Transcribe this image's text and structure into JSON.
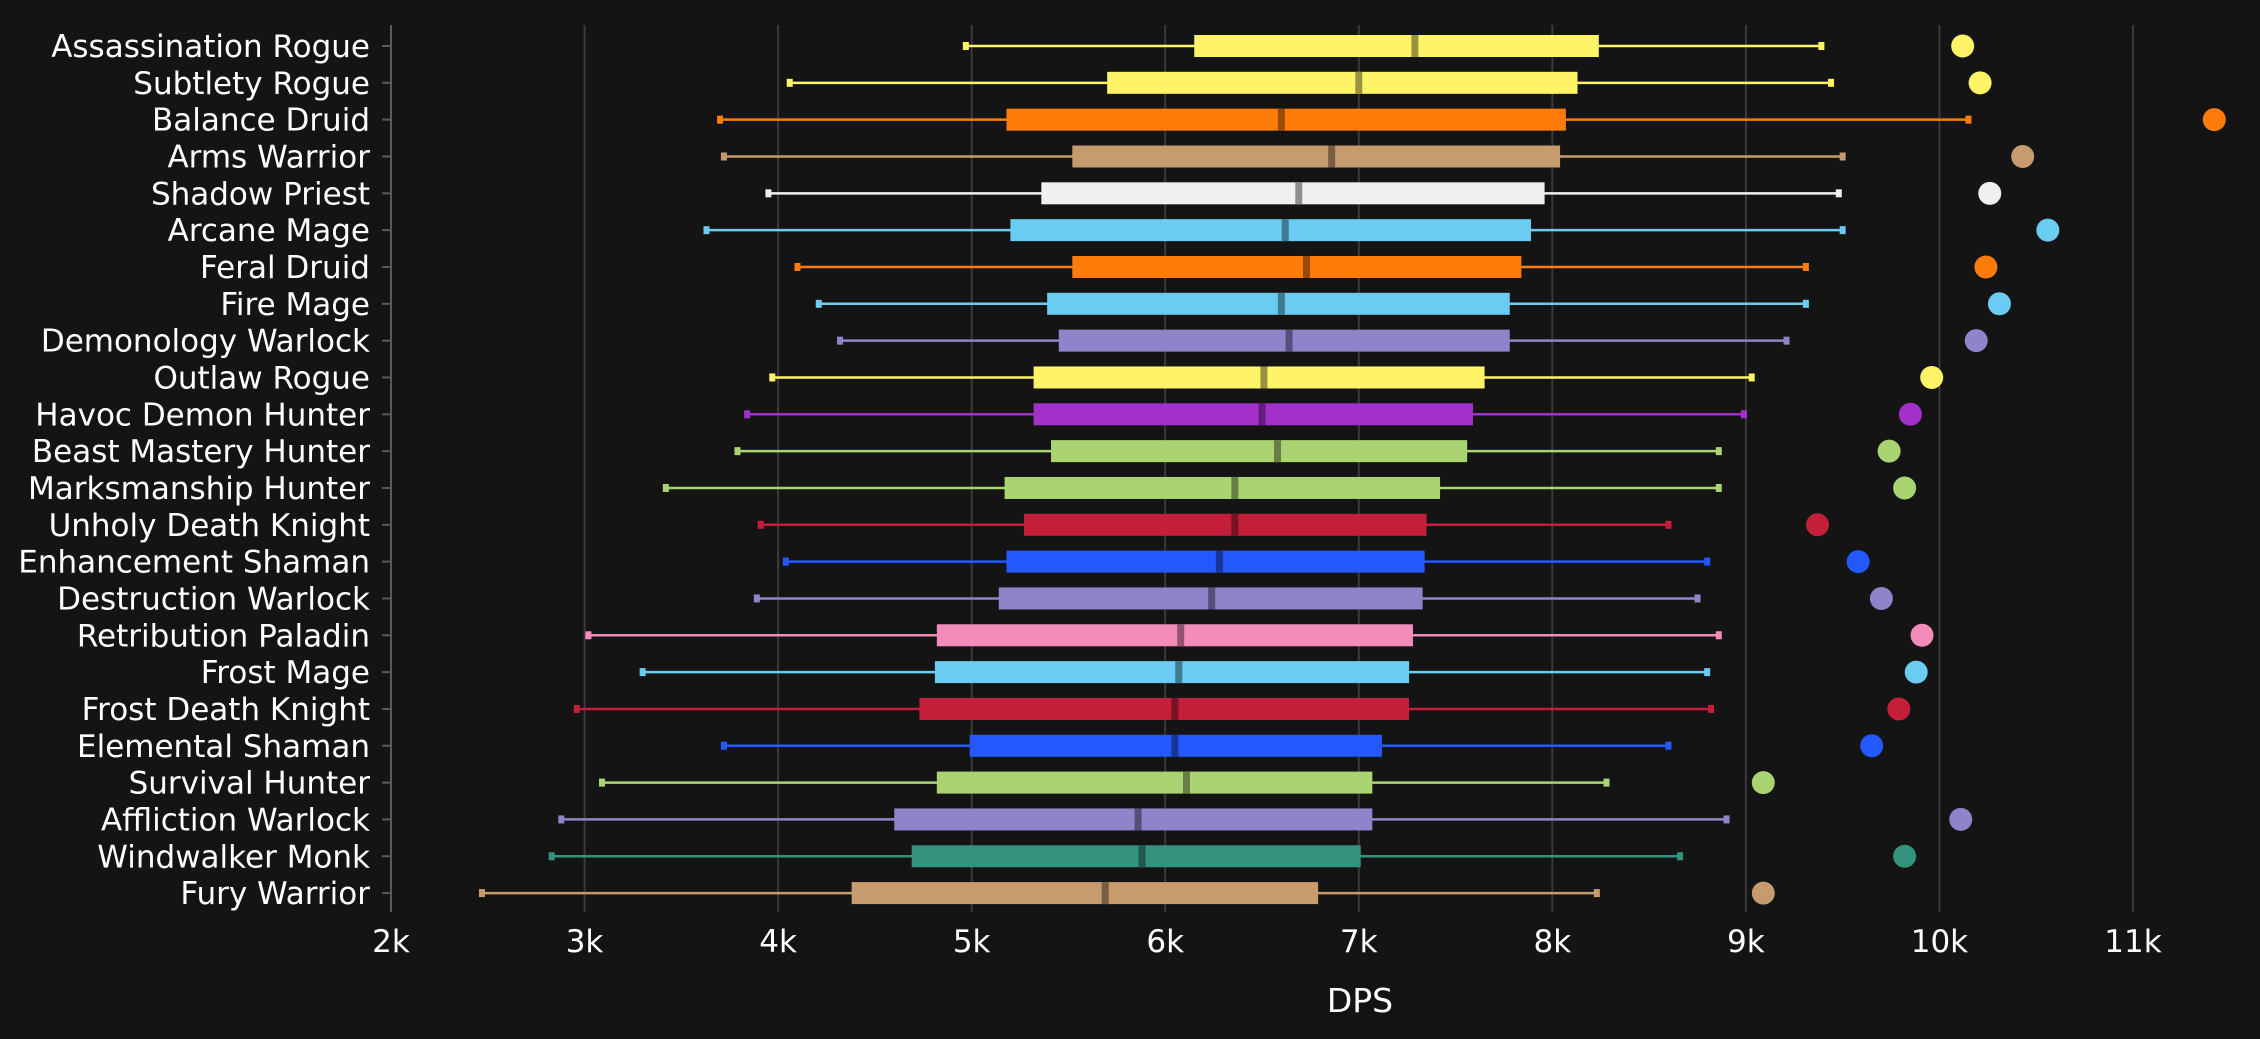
{
  "chart_data": {
    "type": "box",
    "xlabel": "DPS",
    "xlim": [
      2000,
      11000
    ],
    "xticks": [
      2000,
      3000,
      4000,
      5000,
      6000,
      7000,
      8000,
      9000,
      10000,
      11000
    ],
    "xtick_labels": [
      "2k",
      "3k",
      "4k",
      "5k",
      "6k",
      "7k",
      "8k",
      "9k",
      "10k",
      "11k"
    ],
    "grid": true,
    "series": [
      {
        "name": "Assassination Rogue",
        "color": "#FFF468",
        "min": 4970,
        "q1": 6150,
        "median": 7290,
        "q3": 8240,
        "max": 9390,
        "outlier": 10120
      },
      {
        "name": "Subtlety Rogue",
        "color": "#FFF468",
        "min": 4060,
        "q1": 5700,
        "median": 7000,
        "q3": 8130,
        "max": 9440,
        "outlier": 10210
      },
      {
        "name": "Balance Druid",
        "color": "#FF7C0A",
        "min": 3700,
        "q1": 5180,
        "median": 6600,
        "q3": 8070,
        "max": 10150,
        "outlier": 11420
      },
      {
        "name": "Arms Warrior",
        "color": "#C69B6D",
        "min": 3720,
        "q1": 5520,
        "median": 6860,
        "q3": 8040,
        "max": 9500,
        "outlier": 10430
      },
      {
        "name": "Shadow Priest",
        "color": "#F0F0F0",
        "min": 3950,
        "q1": 5360,
        "median": 6690,
        "q3": 7960,
        "max": 9480,
        "outlier": 10260
      },
      {
        "name": "Arcane Mage",
        "color": "#69CCF0",
        "min": 3630,
        "q1": 5200,
        "median": 6620,
        "q3": 7890,
        "max": 9500,
        "outlier": 10560
      },
      {
        "name": "Feral Druid",
        "color": "#FF7C0A",
        "min": 4100,
        "q1": 5520,
        "median": 6730,
        "q3": 7840,
        "max": 9310,
        "outlier": 10240
      },
      {
        "name": "Fire Mage",
        "color": "#69CCF0",
        "min": 4210,
        "q1": 5390,
        "median": 6600,
        "q3": 7780,
        "max": 9310,
        "outlier": 10310
      },
      {
        "name": "Demonology Warlock",
        "color": "#8F84C9",
        "min": 4320,
        "q1": 5450,
        "median": 6640,
        "q3": 7780,
        "max": 9210,
        "outlier": 10190
      },
      {
        "name": "Outlaw Rogue",
        "color": "#FFF468",
        "min": 3970,
        "q1": 5320,
        "median": 6510,
        "q3": 7650,
        "max": 9030,
        "outlier": 9960
      },
      {
        "name": "Havoc Demon Hunter",
        "color": "#A330C9",
        "min": 3840,
        "q1": 5320,
        "median": 6500,
        "q3": 7590,
        "max": 8990,
        "outlier": 9850
      },
      {
        "name": "Beast Mastery Hunter",
        "color": "#AAD372",
        "min": 3790,
        "q1": 5410,
        "median": 6580,
        "q3": 7560,
        "max": 8860,
        "outlier": 9740
      },
      {
        "name": "Marksmanship Hunter",
        "color": "#AAD372",
        "min": 3420,
        "q1": 5170,
        "median": 6360,
        "q3": 7420,
        "max": 8860,
        "outlier": 9820
      },
      {
        "name": "Unholy Death Knight",
        "color": "#C41E3A",
        "min": 3910,
        "q1": 5270,
        "median": 6360,
        "q3": 7350,
        "max": 8600,
        "outlier": 9370
      },
      {
        "name": "Enhancement Shaman",
        "color": "#2459FF",
        "min": 4040,
        "q1": 5180,
        "median": 6280,
        "q3": 7340,
        "max": 8800,
        "outlier": 9580
      },
      {
        "name": "Destruction Warlock",
        "color": "#8F84C9",
        "min": 3890,
        "q1": 5140,
        "median": 6240,
        "q3": 7330,
        "max": 8750,
        "outlier": 9700
      },
      {
        "name": "Retribution Paladin",
        "color": "#F48CBA",
        "min": 3020,
        "q1": 4820,
        "median": 6080,
        "q3": 7280,
        "max": 8860,
        "outlier": 9910
      },
      {
        "name": "Frost Mage",
        "color": "#69CCF0",
        "min": 3300,
        "q1": 4810,
        "median": 6070,
        "q3": 7260,
        "max": 8800,
        "outlier": 9880
      },
      {
        "name": "Frost Death Knight",
        "color": "#C41E3A",
        "min": 2960,
        "q1": 4730,
        "median": 6050,
        "q3": 7260,
        "max": 8820,
        "outlier": 9790
      },
      {
        "name": "Elemental Shaman",
        "color": "#2459FF",
        "min": 3720,
        "q1": 4990,
        "median": 6050,
        "q3": 7120,
        "max": 8600,
        "outlier": 9650
      },
      {
        "name": "Survival Hunter",
        "color": "#AAD372",
        "min": 3090,
        "q1": 4820,
        "median": 6110,
        "q3": 7070,
        "max": 8280,
        "outlier": 9090
      },
      {
        "name": "Affliction Warlock",
        "color": "#8F84C9",
        "min": 2880,
        "q1": 4600,
        "median": 5860,
        "q3": 7070,
        "max": 8900,
        "outlier": 10110
      },
      {
        "name": "Windwalker Monk",
        "color": "#33937F",
        "min": 2830,
        "q1": 4690,
        "median": 5880,
        "q3": 7010,
        "max": 8660,
        "outlier": 9820
      },
      {
        "name": "Fury Warrior",
        "color": "#C69B6D",
        "min": 2470,
        "q1": 4380,
        "median": 5690,
        "q3": 6790,
        "max": 8230,
        "outlier": 9090
      }
    ]
  }
}
